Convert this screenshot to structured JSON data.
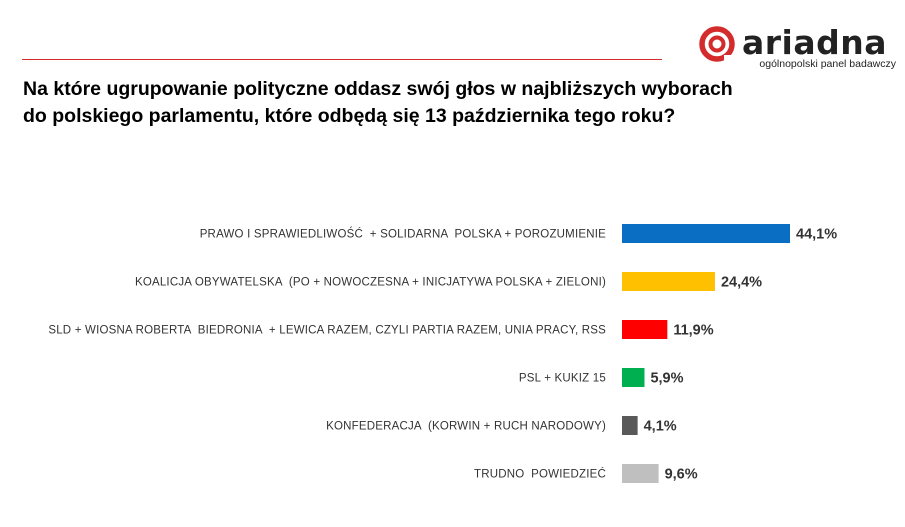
{
  "logo": {
    "name": "ariadna",
    "tagline": "ogólnopolski panel badawczy",
    "brand_color": "#d42c2c"
  },
  "question": {
    "line1": "Na które ugrupowanie polityczne oddasz swój głos w najbliższych wyborach",
    "line2": "do polskiego parlamentu, które odbędą się 13 października tego roku?"
  },
  "chart_data": {
    "type": "bar",
    "orientation": "horizontal",
    "categories": [
      "PRAWO I SPRAWIEDLIWOŚĆ  + SOLIDARNA  POLSKA + POROZUMIENIE",
      "KOALICJA OBYWATELSKA  (PO + NOWOCZESNA + INICJATYWA POLSKA + ZIELONI)",
      "SLD + WIOSNA ROBERTA  BIEDRONIA  + LEWICA RAZEM, CZYLI PARTIA RAZEM, UNIA PRACY, RSS",
      "PSL + KUKIZ 15",
      "KONFEDERACJA  (KORWIN + RUCH NARODOWY)",
      "TRUDNO  POWIEDZIEĆ"
    ],
    "values": [
      44.1,
      24.4,
      11.9,
      5.9,
      4.1,
      9.6
    ],
    "value_labels": [
      "44,1%",
      "24,4%",
      "11,9%",
      "5,9%",
      "4,1%",
      "9,6%"
    ],
    "colors": [
      "#0a6fc2",
      "#ffc000",
      "#ff0000",
      "#00b050",
      "#595959",
      "#bfbfbf"
    ],
    "grid": false,
    "legend": "none"
  }
}
